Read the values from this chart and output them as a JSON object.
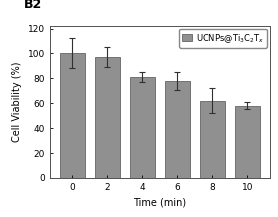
{
  "categories": [
    0,
    2,
    4,
    6,
    8,
    10
  ],
  "values": [
    100,
    97,
    81,
    78,
    62,
    58
  ],
  "errors": [
    12,
    8,
    4,
    7,
    10,
    3
  ],
  "bar_color": "#909090",
  "bar_edgecolor": "#505050",
  "title_label": "B2",
  "xlabel": "Time (min)",
  "ylabel": "Cell Viability (%)",
  "ylim": [
    0,
    122
  ],
  "yticks": [
    0,
    20,
    40,
    60,
    80,
    100,
    120
  ],
  "legend_label": "UCNPs@Ti$_3$C$_2$T$_x$",
  "legend_patch_color": "#909090",
  "background_color": "#ffffff",
  "bar_width": 1.4,
  "title_fontsize": 9,
  "axis_fontsize": 7,
  "tick_fontsize": 6.5,
  "legend_fontsize": 6
}
